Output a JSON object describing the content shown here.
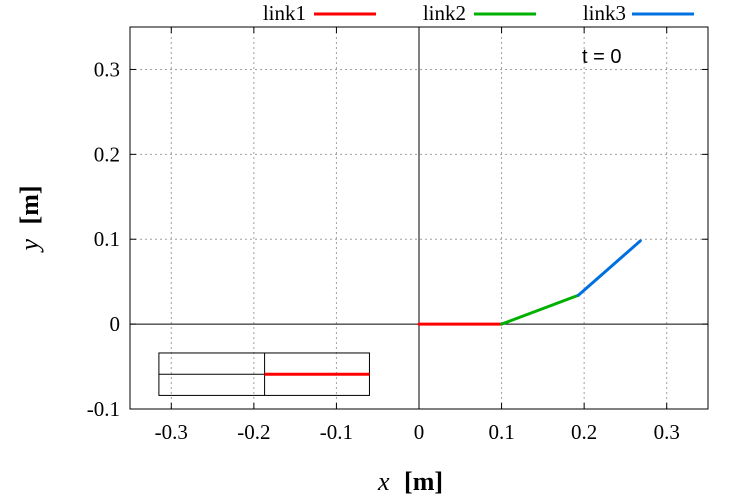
{
  "chart_data": {
    "type": "line",
    "xlabel_var": "x",
    "xlabel_unit": "[m]",
    "ylabel_var": "y",
    "ylabel_unit": "[m]",
    "xlim": [
      -0.35,
      0.35
    ],
    "ylim": [
      -0.1,
      0.35
    ],
    "x_ticks": [
      -0.3,
      -0.2,
      -0.1,
      0,
      0.1,
      0.2,
      0.3
    ],
    "x_tick_labels": [
      "-0.3",
      "-0.2",
      "-0.1",
      "0",
      "0.1",
      "0.2",
      "0.3"
    ],
    "y_ticks": [
      -0.1,
      0,
      0.1,
      0.2,
      0.3
    ],
    "y_tick_labels": [
      "-0.1",
      "0",
      "0.1",
      "0.2",
      "0.3"
    ],
    "grid": true,
    "legend_position": "top",
    "annotation": "t = 0",
    "series": [
      {
        "name": "link1",
        "color": "#ff0000",
        "x": [
          0.0,
          0.1
        ],
        "y": [
          0.0,
          0.0
        ]
      },
      {
        "name": "link2",
        "color": "#00b000",
        "x": [
          0.1,
          0.193
        ],
        "y": [
          0.0,
          0.034
        ]
      },
      {
        "name": "link3",
        "color": "#0070e0",
        "x": [
          0.193,
          0.268
        ],
        "y": [
          0.034,
          0.098
        ]
      }
    ],
    "inset": {
      "x": [
        -0.315,
        -0.06
      ],
      "y": [
        -0.084,
        -0.034
      ],
      "divider_x": -0.187,
      "centerline_y": -0.059,
      "highlight_color": "#ff0000",
      "highlight_x": [
        -0.187,
        -0.06
      ]
    }
  }
}
